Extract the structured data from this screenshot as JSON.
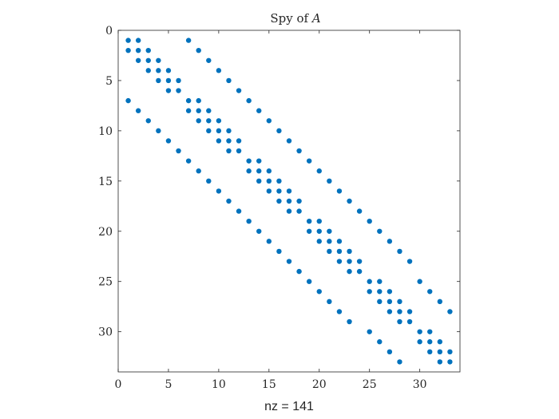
{
  "chart_data": {
    "type": "scatter",
    "title_prefix": "Spy of ",
    "title_var": "A",
    "xlabel": "nz = 141",
    "ylabel": "",
    "xlim": [
      0,
      34
    ],
    "ylim": [
      0,
      34
    ],
    "y_reversed": true,
    "xticks": [
      0,
      5,
      10,
      15,
      20,
      25,
      30
    ],
    "yticks": [
      0,
      5,
      10,
      15,
      20,
      25,
      30
    ],
    "marker_color": "#0072BD",
    "nz": 141,
    "points": [
      [
        1,
        1
      ],
      [
        2,
        1
      ],
      [
        7,
        1
      ],
      [
        1,
        2
      ],
      [
        2,
        2
      ],
      [
        3,
        2
      ],
      [
        8,
        2
      ],
      [
        2,
        3
      ],
      [
        3,
        3
      ],
      [
        4,
        3
      ],
      [
        9,
        3
      ],
      [
        3,
        4
      ],
      [
        4,
        4
      ],
      [
        5,
        4
      ],
      [
        10,
        4
      ],
      [
        4,
        5
      ],
      [
        5,
        5
      ],
      [
        6,
        5
      ],
      [
        11,
        5
      ],
      [
        5,
        6
      ],
      [
        6,
        6
      ],
      [
        12,
        6
      ],
      [
        1,
        7
      ],
      [
        7,
        7
      ],
      [
        8,
        7
      ],
      [
        13,
        7
      ],
      [
        2,
        8
      ],
      [
        7,
        8
      ],
      [
        8,
        8
      ],
      [
        9,
        8
      ],
      [
        14,
        8
      ],
      [
        3,
        9
      ],
      [
        8,
        9
      ],
      [
        9,
        9
      ],
      [
        10,
        9
      ],
      [
        15,
        9
      ],
      [
        4,
        10
      ],
      [
        9,
        10
      ],
      [
        10,
        10
      ],
      [
        11,
        10
      ],
      [
        16,
        10
      ],
      [
        5,
        11
      ],
      [
        10,
        11
      ],
      [
        11,
        11
      ],
      [
        12,
        11
      ],
      [
        17,
        11
      ],
      [
        6,
        12
      ],
      [
        11,
        12
      ],
      [
        12,
        12
      ],
      [
        18,
        12
      ],
      [
        7,
        13
      ],
      [
        13,
        13
      ],
      [
        14,
        13
      ],
      [
        19,
        13
      ],
      [
        8,
        14
      ],
      [
        13,
        14
      ],
      [
        14,
        14
      ],
      [
        15,
        14
      ],
      [
        20,
        14
      ],
      [
        9,
        15
      ],
      [
        14,
        15
      ],
      [
        15,
        15
      ],
      [
        16,
        15
      ],
      [
        21,
        15
      ],
      [
        10,
        16
      ],
      [
        15,
        16
      ],
      [
        16,
        16
      ],
      [
        17,
        16
      ],
      [
        22,
        16
      ],
      [
        11,
        17
      ],
      [
        16,
        17
      ],
      [
        17,
        17
      ],
      [
        18,
        17
      ],
      [
        23,
        17
      ],
      [
        12,
        18
      ],
      [
        17,
        18
      ],
      [
        18,
        18
      ],
      [
        24,
        18
      ],
      [
        13,
        19
      ],
      [
        19,
        19
      ],
      [
        20,
        19
      ],
      [
        25,
        19
      ],
      [
        14,
        20
      ],
      [
        19,
        20
      ],
      [
        20,
        20
      ],
      [
        21,
        20
      ],
      [
        26,
        20
      ],
      [
        15,
        21
      ],
      [
        20,
        21
      ],
      [
        21,
        21
      ],
      [
        22,
        21
      ],
      [
        27,
        21
      ],
      [
        16,
        22
      ],
      [
        21,
        22
      ],
      [
        22,
        22
      ],
      [
        23,
        22
      ],
      [
        28,
        22
      ],
      [
        17,
        23
      ],
      [
        22,
        23
      ],
      [
        23,
        23
      ],
      [
        24,
        23
      ],
      [
        29,
        23
      ],
      [
        18,
        24
      ],
      [
        23,
        24
      ],
      [
        24,
        24
      ],
      [
        19,
        25
      ],
      [
        25,
        25
      ],
      [
        26,
        25
      ],
      [
        30,
        25
      ],
      [
        20,
        26
      ],
      [
        25,
        26
      ],
      [
        26,
        26
      ],
      [
        27,
        26
      ],
      [
        31,
        26
      ],
      [
        21,
        27
      ],
      [
        26,
        27
      ],
      [
        27,
        27
      ],
      [
        28,
        27
      ],
      [
        32,
        27
      ],
      [
        22,
        28
      ],
      [
        27,
        28
      ],
      [
        28,
        28
      ],
      [
        29,
        28
      ],
      [
        33,
        28
      ],
      [
        23,
        29
      ],
      [
        28,
        29
      ],
      [
        29,
        29
      ],
      [
        25,
        30
      ],
      [
        30,
        30
      ],
      [
        31,
        30
      ],
      [
        26,
        31
      ],
      [
        30,
        31
      ],
      [
        31,
        31
      ],
      [
        32,
        31
      ],
      [
        27,
        32
      ],
      [
        31,
        32
      ],
      [
        32,
        32
      ],
      [
        33,
        32
      ],
      [
        28,
        33
      ],
      [
        32,
        33
      ],
      [
        33,
        33
      ]
    ]
  }
}
